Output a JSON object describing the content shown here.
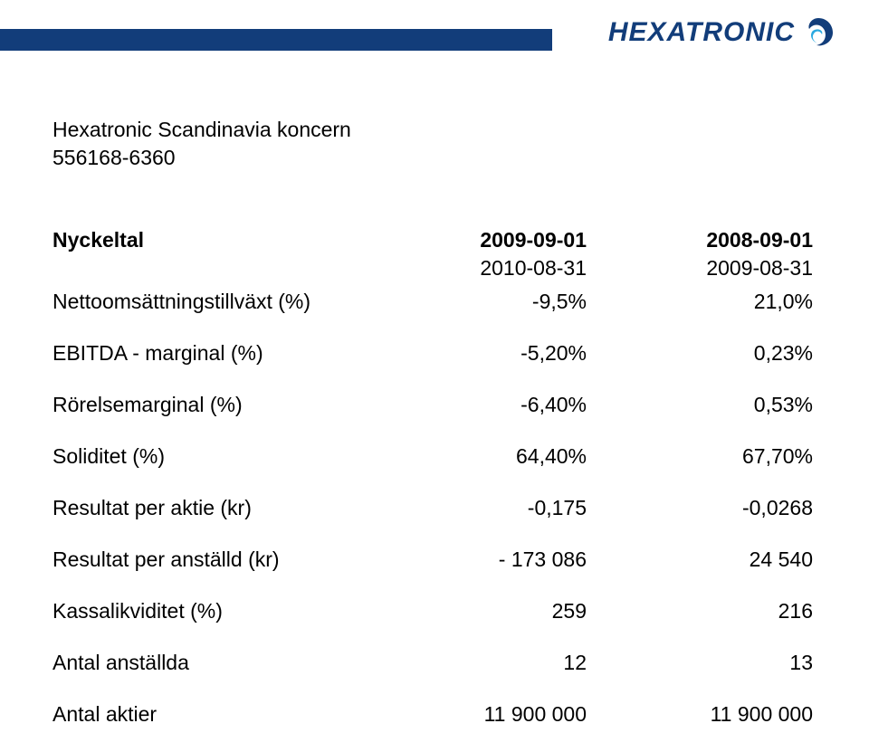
{
  "brand": {
    "name": "HEXATRONIC",
    "bar_color": "#123d7a",
    "text_color": "#123d7a"
  },
  "company": {
    "line1": "Hexatronic Scandinavia  koncern",
    "line2": "556168-6360"
  },
  "table": {
    "header": {
      "label": "Nyckeltal",
      "period1_start": "2009-09-01",
      "period1_end": "2010-08-31",
      "period2_start": "2008-09-01",
      "period2_end": "2009-08-31"
    },
    "rows": [
      {
        "label": "Nettoomsättningstillväxt  (%)",
        "v1": "-9,5%",
        "v2": "21,0%"
      },
      {
        "label": "EBITDA - marginal (%)",
        "v1": "-5,20%",
        "v2": "0,23%"
      },
      {
        "label": "Rörelsemarginal (%)",
        "v1": "-6,40%",
        "v2": "0,53%"
      },
      {
        "label": "Soliditet (%)",
        "v1": "64,40%",
        "v2": "67,70%"
      },
      {
        "label": "Resultat per aktie (kr)",
        "v1": "-0,175",
        "v2": "-0,0268"
      },
      {
        "label": "Resultat per anställd (kr)",
        "v1": "-      173 086",
        "v2": "24 540"
      },
      {
        "label": "Kassalikviditet (%)",
        "v1": "259",
        "v2": "216"
      },
      {
        "label": "Antal anställda",
        "v1": "12",
        "v2": "13"
      },
      {
        "label": "Antal aktier",
        "v1": "11 900 000",
        "v2": "11 900 000"
      }
    ]
  },
  "style": {
    "font_family": "Arial",
    "body_fontsize_pt": 17,
    "background_color": "#ffffff",
    "text_color": "#000000"
  }
}
